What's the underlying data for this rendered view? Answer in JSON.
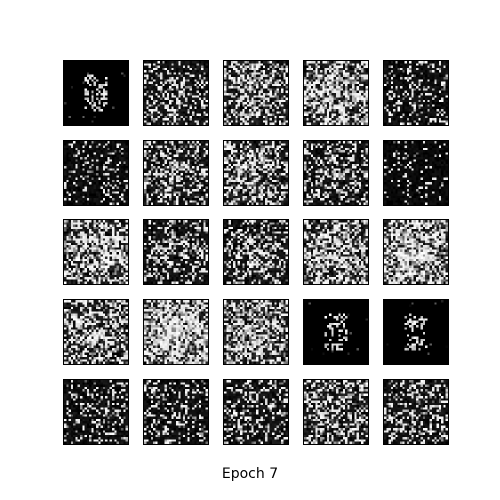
{
  "caption": "Epoch 7",
  "grid": {
    "rows": 5,
    "cols": 5,
    "image_resolution": 28,
    "samples": [
      {
        "style": "sparse-digit",
        "brightness": 0.03
      },
      {
        "style": "noise",
        "brightness": 0.4
      },
      {
        "style": "noise",
        "brightness": 0.62
      },
      {
        "style": "noise",
        "brightness": 0.72
      },
      {
        "style": "noise",
        "brightness": 0.3
      },
      {
        "style": "noise",
        "brightness": 0.22
      },
      {
        "style": "noise",
        "brightness": 0.45
      },
      {
        "style": "noise",
        "brightness": 0.58
      },
      {
        "style": "noise",
        "brightness": 0.42
      },
      {
        "style": "noise",
        "brightness": 0.12
      },
      {
        "style": "noise",
        "brightness": 0.7
      },
      {
        "style": "noise",
        "brightness": 0.4
      },
      {
        "style": "noise",
        "brightness": 0.45
      },
      {
        "style": "noise",
        "brightness": 0.68
      },
      {
        "style": "noise",
        "brightness": 0.8
      },
      {
        "style": "noise",
        "brightness": 0.62
      },
      {
        "style": "noise",
        "brightness": 0.88
      },
      {
        "style": "noise",
        "brightness": 0.7
      },
      {
        "style": "sparse-digit",
        "brightness": 0.04
      },
      {
        "style": "sparse-digit",
        "brightness": 0.07
      },
      {
        "style": "noise",
        "brightness": 0.3
      },
      {
        "style": "noise",
        "brightness": 0.32
      },
      {
        "style": "noise",
        "brightness": 0.38
      },
      {
        "style": "noise",
        "brightness": 0.55
      },
      {
        "style": "noise",
        "brightness": 0.4
      }
    ]
  }
}
